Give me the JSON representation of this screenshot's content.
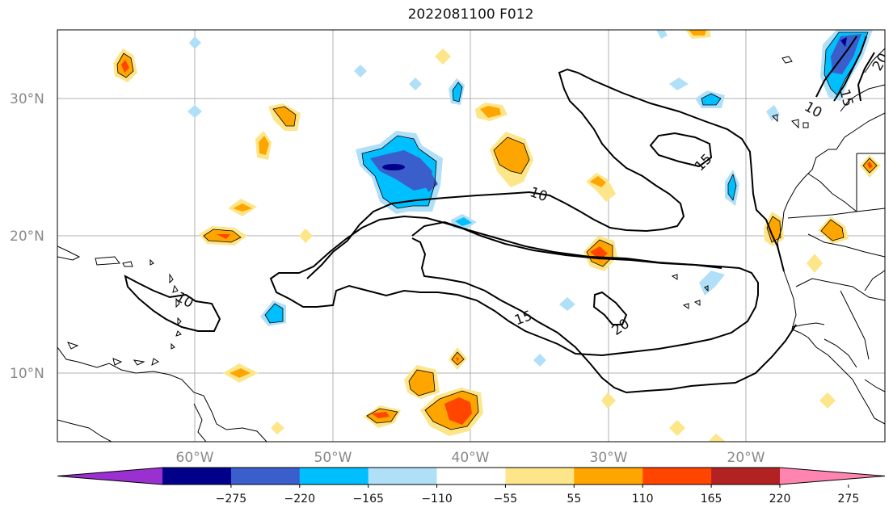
{
  "title": "2022081100 F012",
  "map": {
    "lat_labels": [
      "30°N",
      "20°N",
      "10°N"
    ],
    "lon_labels": [
      "60°W",
      "50°W",
      "40°W",
      "30°W",
      "20°W"
    ],
    "contour_labels": [
      "10",
      "15",
      "20",
      "15",
      "10",
      "15",
      "20",
      "10"
    ]
  },
  "colorbar": {
    "ticks": [
      "−275",
      "−220",
      "−165",
      "−110",
      "−55",
      "55",
      "110",
      "165",
      "220",
      "275"
    ],
    "colors": [
      "#9b30d0",
      "#00008b",
      "#3a5fcd",
      "#00bfff",
      "#b0e0f8",
      "#ffffff",
      "#fde68a",
      "#ffa500",
      "#ff4500",
      "#b22222",
      "#ff85b0"
    ]
  }
}
